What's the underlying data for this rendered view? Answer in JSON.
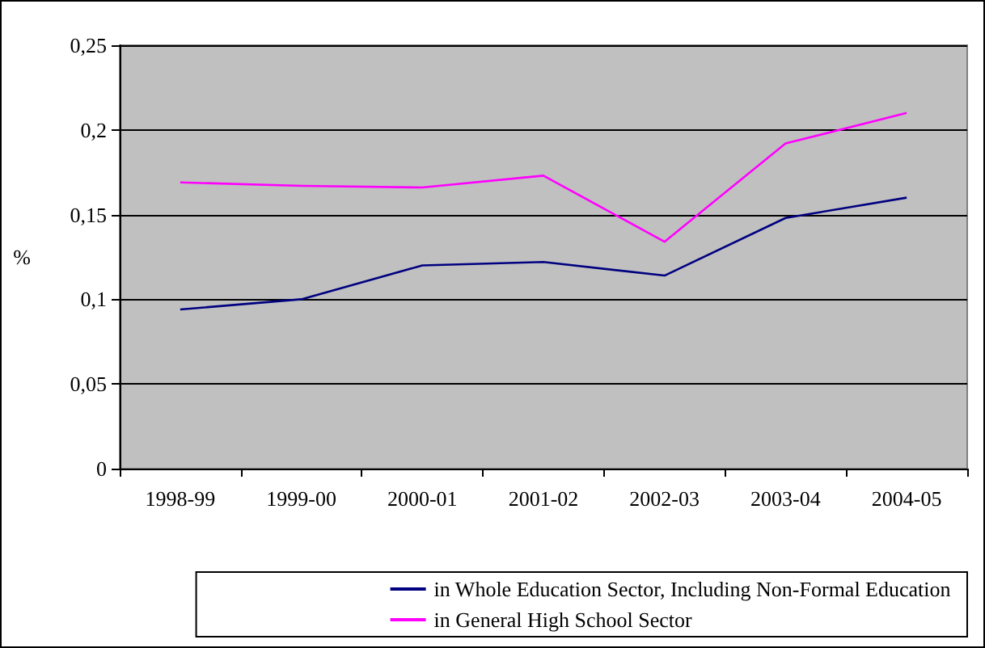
{
  "chart_data": {
    "type": "line",
    "ylabel": "%",
    "categories": [
      "1998-99",
      "1999-00",
      "2000-01",
      "2001-02",
      "2002-03",
      "2003-04",
      "2004-05"
    ],
    "series": [
      {
        "name": "in Whole Education Sector, Including Non-Formal Education",
        "color": "#000080",
        "values": [
          0.094,
          0.1,
          0.12,
          0.122,
          0.114,
          0.148,
          0.16
        ]
      },
      {
        "name": "in General High School Sector",
        "color": "#ff00ff",
        "values": [
          0.169,
          0.167,
          0.166,
          0.173,
          0.134,
          0.192,
          0.21
        ]
      }
    ],
    "ylim": [
      0,
      0.25
    ],
    "yticks": [
      {
        "value": 0,
        "label": "0"
      },
      {
        "value": 0.05,
        "label": "0,05"
      },
      {
        "value": 0.1,
        "label": "0,1"
      },
      {
        "value": 0.15,
        "label": "0,15"
      },
      {
        "value": 0.2,
        "label": "0,2"
      },
      {
        "value": 0.25,
        "label": "0,25"
      }
    ],
    "grid": "y",
    "legend": "bottom right",
    "marker": "none",
    "line_style": "solid"
  }
}
